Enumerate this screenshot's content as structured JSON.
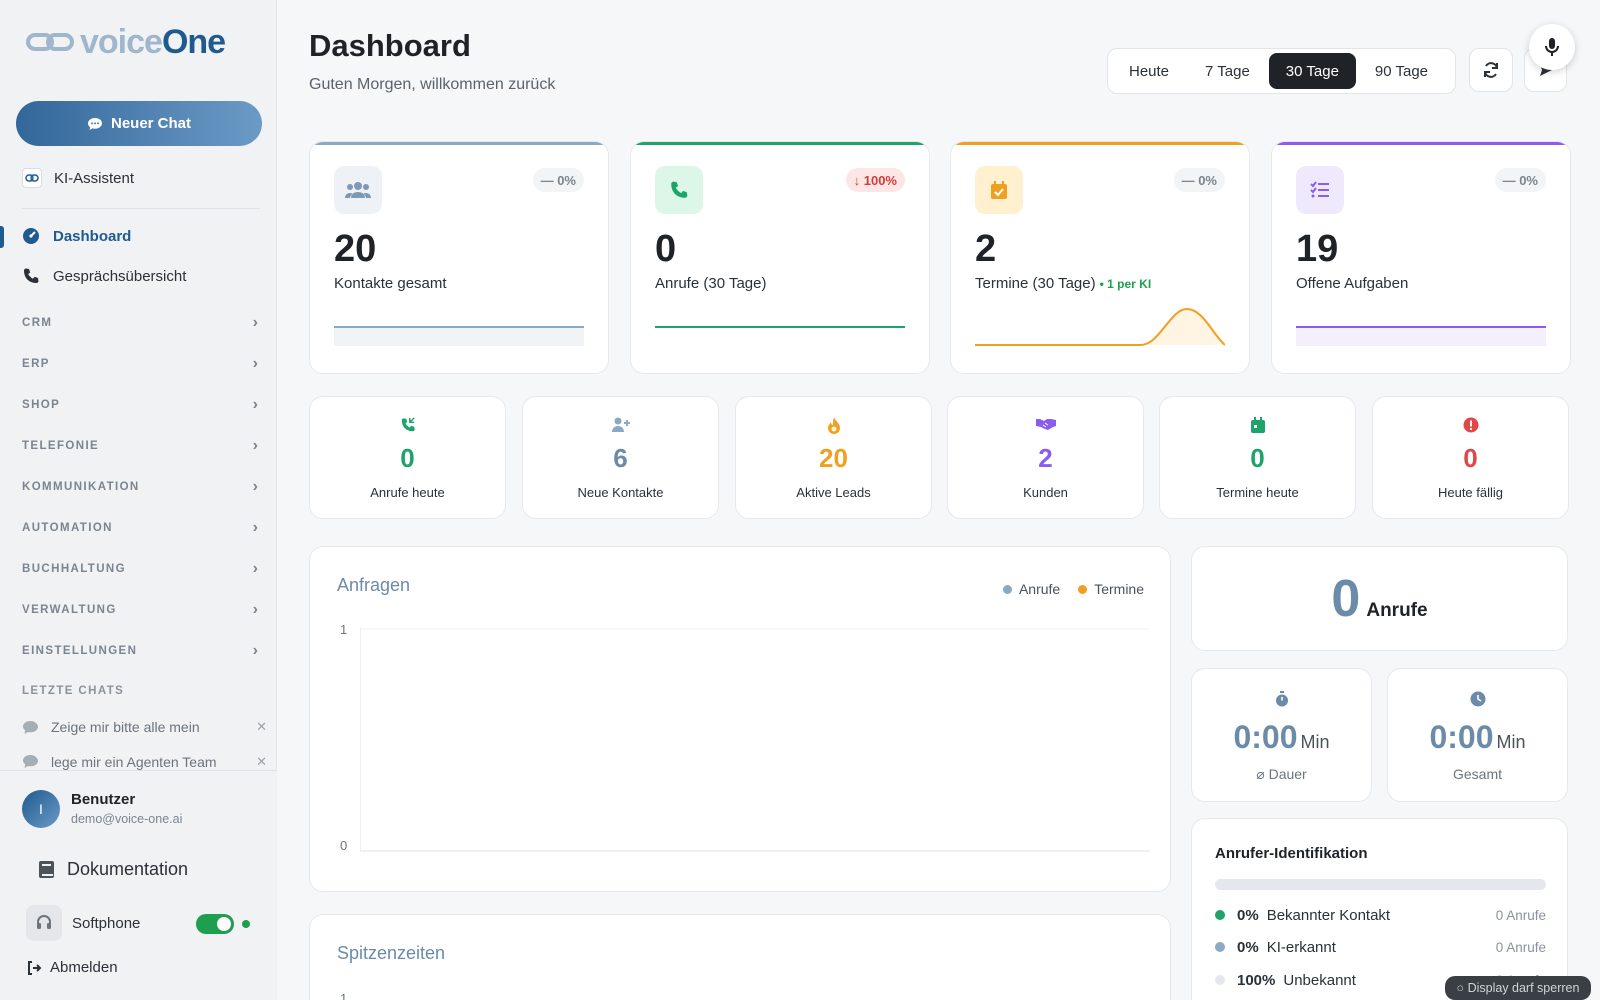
{
  "brand": {
    "part1": "voice",
    "part2": "One"
  },
  "sidebar": {
    "new_chat": "Neuer Chat",
    "assistant": "KI-Assistent",
    "nav": [
      {
        "label": "Dashboard",
        "icon": "dashboard-icon",
        "active": true
      },
      {
        "label": "Gesprächsübersicht",
        "icon": "phone-icon",
        "active": false
      }
    ],
    "sections": [
      "CRM",
      "ERP",
      "SHOP",
      "TELEFONIE",
      "KOMMUNIKATION",
      "AUTOMATION",
      "BUCHHALTUNG",
      "VERWALTUNG",
      "EINSTELLUNGEN"
    ],
    "last_chats_label": "LETZTE CHATS",
    "chats": [
      "Zeige mir bitte alle mein",
      "lege mir ein Agenten Team"
    ],
    "user": {
      "initial": "I",
      "name": "Benutzer",
      "email": "demo@voice-one.ai"
    },
    "documentation": "Dokumentation",
    "softphone": "Softphone",
    "softphone_on": true,
    "logout": "Abmelden"
  },
  "header": {
    "title": "Dashboard",
    "subtitle": "Guten Morgen, willkommen zurück",
    "ranges": [
      "Heute",
      "7 Tage",
      "30 Tage",
      "90 Tage"
    ],
    "selected_range": "30 Tage"
  },
  "kpis": [
    {
      "value": "20",
      "label": "Kontakte gesamt",
      "badge": "— 0%",
      "accent": "#8aa9c4",
      "icon": "users-icon"
    },
    {
      "value": "0",
      "label": "Anrufe (30 Tage)",
      "badge": "↓ 100%",
      "accent": "#1e9e6a",
      "icon": "phone-icon"
    },
    {
      "value": "2",
      "label": "Termine (30 Tage)",
      "extra": "• 1 per KI",
      "badge": "— 0%",
      "accent": "#f0a020",
      "icon": "calendar-check-icon"
    },
    {
      "value": "19",
      "label": "Offene Aufgaben",
      "badge": "— 0%",
      "accent": "#8a5cf0",
      "icon": "tasks-icon"
    }
  ],
  "mini_stats": [
    {
      "value": "0",
      "label": "Anrufe heute",
      "color": "#1ea36a",
      "icon": "phone-incoming-icon"
    },
    {
      "value": "6",
      "label": "Neue Kontakte",
      "color": "#6b8ba8",
      "icon": "user-plus-icon"
    },
    {
      "value": "20",
      "label": "Aktive Leads",
      "color": "#f0a020",
      "icon": "flame-icon"
    },
    {
      "value": "2",
      "label": "Kunden",
      "color": "#8a5cf0",
      "icon": "handshake-icon"
    },
    {
      "value": "0",
      "label": "Termine heute",
      "color": "#1ea36a",
      "icon": "calendar-icon"
    },
    {
      "value": "0",
      "label": "Heute fällig",
      "color": "#e04848",
      "icon": "alert-icon"
    }
  ],
  "chart_data": {
    "type": "line",
    "title": "Anfragen",
    "series": [
      {
        "name": "Anrufe",
        "values": []
      },
      {
        "name": "Termine",
        "values": []
      }
    ],
    "ylim": [
      0,
      1
    ],
    "yticks": [
      "1",
      "0"
    ],
    "grid": true,
    "legend": "top-right"
  },
  "peak": {
    "title": "Spitzenzeiten",
    "ytick": "1"
  },
  "calls": {
    "value": "0",
    "label": "Anrufe"
  },
  "duration": {
    "avg_value": "0:00",
    "avg_unit": "Min",
    "avg_label": "⌀ Dauer",
    "total_value": "0:00",
    "total_unit": "Min",
    "total_label": "Gesamt"
  },
  "caller_id": {
    "title": "Anrufer-Identifikation",
    "rows": [
      {
        "pct": "0%",
        "label": "Bekannter Kontakt",
        "count": "0 Anrufe",
        "color": "#1ea36a"
      },
      {
        "pct": "0%",
        "label": "KI-erkannt",
        "count": "0 Anrufe",
        "color": "#8aa9c4"
      },
      {
        "pct": "100%",
        "label": "Unbekannt",
        "count": "0 Anrufe",
        "color": "#e4e8ee"
      }
    ]
  },
  "toast": "○ Display darf sperren"
}
